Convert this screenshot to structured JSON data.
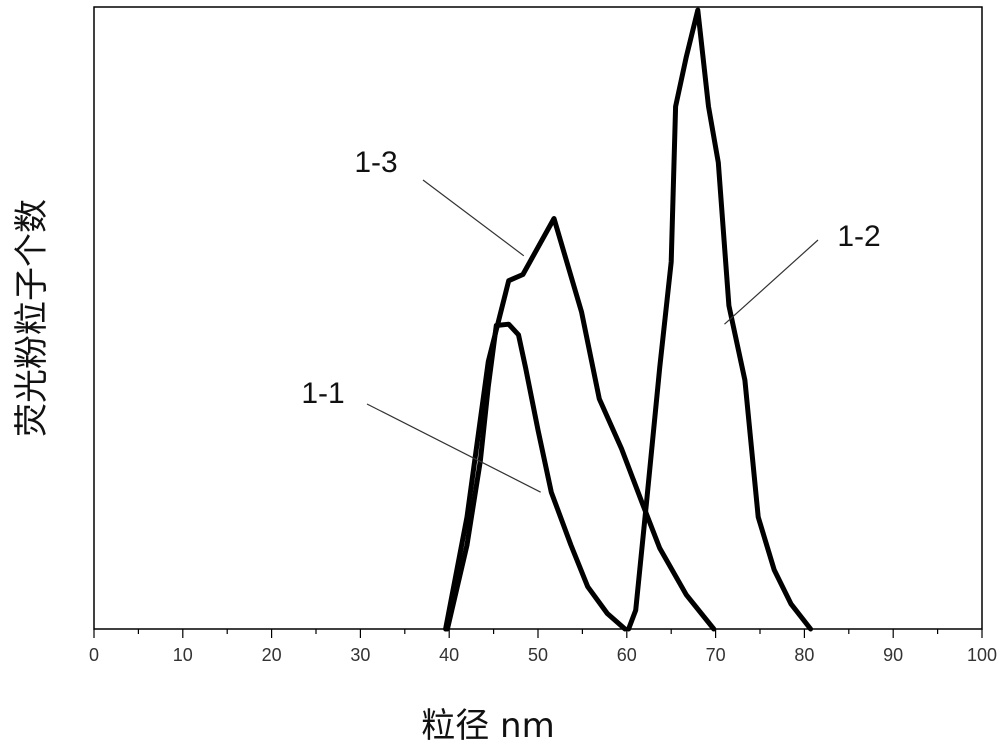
{
  "chart_data": {
    "type": "line",
    "title": "",
    "xlabel": "粒径 nm",
    "ylabel": "荧光粉粒子个数",
    "xlim": [
      0,
      100
    ],
    "ylim": [
      0,
      1
    ],
    "x_ticks": [
      0,
      10,
      20,
      30,
      40,
      50,
      60,
      70,
      80,
      90,
      100
    ],
    "y_ticks_shown": false,
    "grid": false,
    "legend": "none",
    "series": [
      {
        "name": "1-1",
        "points": [
          [
            39.8,
            0.0
          ],
          [
            42.0,
            0.135
          ],
          [
            43.5,
            0.27
          ],
          [
            44.4,
            0.39
          ],
          [
            45.3,
            0.488
          ],
          [
            46.7,
            0.49
          ],
          [
            47.8,
            0.473
          ],
          [
            48.6,
            0.42
          ],
          [
            50.0,
            0.32
          ],
          [
            51.5,
            0.22
          ],
          [
            53.7,
            0.135
          ],
          [
            55.6,
            0.068
          ],
          [
            57.8,
            0.025
          ],
          [
            59.8,
            0.0
          ]
        ]
      },
      {
        "name": "1-2",
        "points": [
          [
            60.2,
            0.0
          ],
          [
            61.0,
            0.03
          ],
          [
            62.2,
            0.2
          ],
          [
            63.7,
            0.42
          ],
          [
            65.0,
            0.59
          ],
          [
            65.5,
            0.84
          ],
          [
            66.7,
            0.92
          ],
          [
            68.0,
            0.995
          ],
          [
            69.2,
            0.84
          ],
          [
            70.3,
            0.75
          ],
          [
            71.5,
            0.52
          ],
          [
            73.3,
            0.4
          ],
          [
            74.8,
            0.18
          ],
          [
            76.6,
            0.095
          ],
          [
            78.5,
            0.04
          ],
          [
            80.7,
            0.0
          ]
        ]
      },
      {
        "name": "1-3",
        "points": [
          [
            39.6,
            0.0
          ],
          [
            42.0,
            0.18
          ],
          [
            44.4,
            0.43
          ],
          [
            46.7,
            0.56
          ],
          [
            48.3,
            0.57
          ],
          [
            51.8,
            0.66
          ],
          [
            54.9,
            0.51
          ],
          [
            56.9,
            0.37
          ],
          [
            59.4,
            0.29
          ],
          [
            61.8,
            0.2
          ],
          [
            63.7,
            0.13
          ],
          [
            66.7,
            0.055
          ],
          [
            69.8,
            0.0
          ]
        ]
      }
    ],
    "annotations": [
      {
        "text": "1-1",
        "series": "1-1",
        "x": 50.3,
        "y": 0.22
      },
      {
        "text": "1-2",
        "series": "1-2",
        "x": 71.0,
        "y": 0.49
      },
      {
        "text": "1-3",
        "series": "1-3",
        "x": 48.4,
        "y": 0.6
      }
    ]
  }
}
